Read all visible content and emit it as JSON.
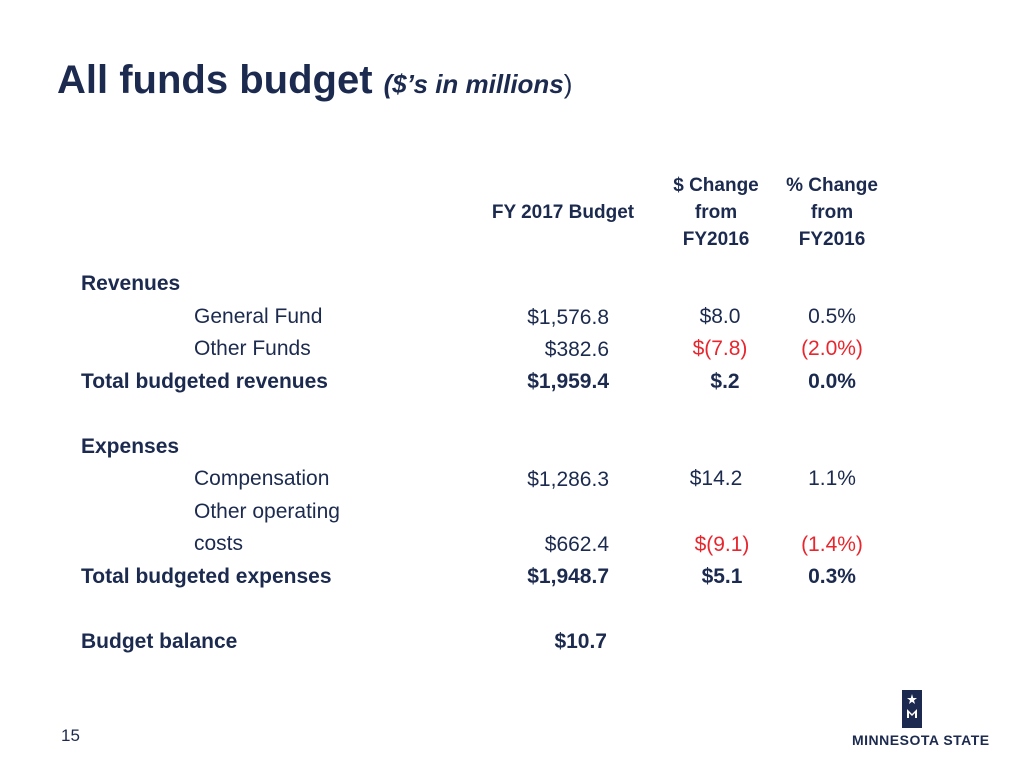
{
  "title": {
    "main": "All funds budget",
    "sub": "($’s in millions",
    "close": ")"
  },
  "headers": {
    "fy2017": "FY 2017 Budget",
    "dollar_change": [
      "$ Change",
      "from",
      "FY2016"
    ],
    "pct_change": [
      "% Change",
      "from",
      "FY2016"
    ]
  },
  "revenues": {
    "section": "Revenues",
    "general_fund": {
      "label": "General Fund",
      "budget": "$1,576.8",
      "dollar": "$8.0",
      "pct": "0.5%"
    },
    "other_funds": {
      "label": "Other Funds",
      "budget": "$382.6",
      "dollar": "$(7.8)",
      "pct": "(2.0%)"
    },
    "total": {
      "label": "Total budgeted revenues",
      "budget": "$1,959.4",
      "dollar": "$.2",
      "pct": "0.0%"
    }
  },
  "expenses": {
    "section": "Expenses",
    "compensation": {
      "label": "Compensation",
      "budget": "$1,286.3",
      "dollar": "$14.2",
      "pct": "1.1%"
    },
    "other_operating": {
      "label_line1": "Other operating",
      "label_line2": "costs",
      "budget": "$662.4",
      "dollar": "$(9.1)",
      "pct": "(1.4%)"
    },
    "total": {
      "label": "Total budgeted expenses",
      "budget": "$1,948.7",
      "dollar": "$5.1",
      "pct": "0.3%"
    }
  },
  "balance": {
    "label": "Budget balance",
    "value": "$10.7"
  },
  "page_number": "15",
  "logo_text": "MINNESOTA STATE",
  "colors": {
    "navy": "#1b2a4e",
    "negative": "#e8262e"
  }
}
